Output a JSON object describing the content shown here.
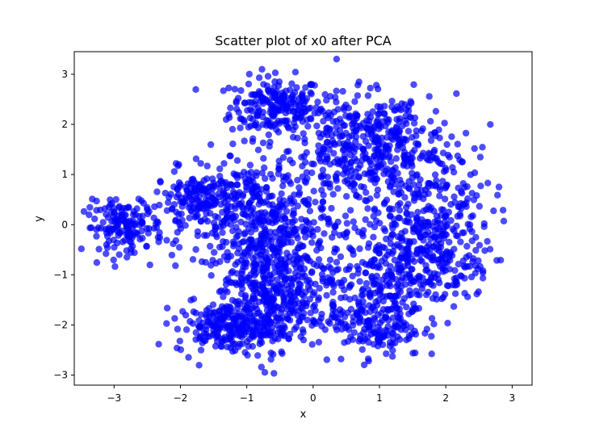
{
  "chart_data": {
    "type": "scatter",
    "title": "Scatter plot of x0 after PCA",
    "xlabel": "x",
    "ylabel": "y",
    "xlim": [
      -3.6,
      3.3
    ],
    "ylim": [
      -3.2,
      3.45
    ],
    "x_ticks": [
      -3,
      -2,
      -1,
      0,
      1,
      2,
      3
    ],
    "y_ticks": [
      -3,
      -2,
      -1,
      0,
      1,
      2,
      3
    ],
    "x_tick_labels": [
      "−3",
      "−2",
      "−1",
      "0",
      "1",
      "2",
      "3"
    ],
    "y_tick_labels": [
      "−3",
      "−2",
      "−1",
      "0",
      "1",
      "2",
      "3"
    ],
    "grid": false,
    "marker_color": "#0000ff",
    "marker_alpha": 0.7,
    "clusters": [
      {
        "center": [
          -0.55,
          2.35
        ],
        "spread": [
          0.35,
          0.3
        ],
        "count": 220
      },
      {
        "center": [
          0.55,
          1.5
        ],
        "spread": [
          0.45,
          0.55
        ],
        "count": 240
      },
      {
        "center": [
          1.25,
          1.6
        ],
        "spread": [
          0.45,
          0.5
        ],
        "count": 200
      },
      {
        "center": [
          1.8,
          0.0
        ],
        "spread": [
          0.45,
          0.75
        ],
        "count": 300
      },
      {
        "center": [
          -2.85,
          -0.05
        ],
        "spread": [
          0.3,
          0.25
        ],
        "count": 160
      },
      {
        "center": [
          -1.6,
          0.5
        ],
        "spread": [
          0.4,
          0.3
        ],
        "count": 200
      },
      {
        "center": [
          -0.8,
          0.1
        ],
        "spread": [
          0.5,
          0.6
        ],
        "count": 320
      },
      {
        "center": [
          -0.5,
          -1.0
        ],
        "spread": [
          0.45,
          0.5
        ],
        "count": 260
      },
      {
        "center": [
          -1.35,
          -2.05
        ],
        "spread": [
          0.35,
          0.25
        ],
        "count": 180
      },
      {
        "center": [
          -0.7,
          -1.8
        ],
        "spread": [
          0.4,
          0.35
        ],
        "count": 180
      },
      {
        "center": [
          0.95,
          -1.9
        ],
        "spread": [
          0.35,
          0.4
        ],
        "count": 200
      },
      {
        "center": [
          1.4,
          -0.8
        ],
        "spread": [
          0.45,
          0.45
        ],
        "count": 200
      },
      {
        "center": [
          0.2,
          -0.6
        ],
        "spread": [
          0.7,
          1.0
        ],
        "count": 110
      }
    ]
  }
}
